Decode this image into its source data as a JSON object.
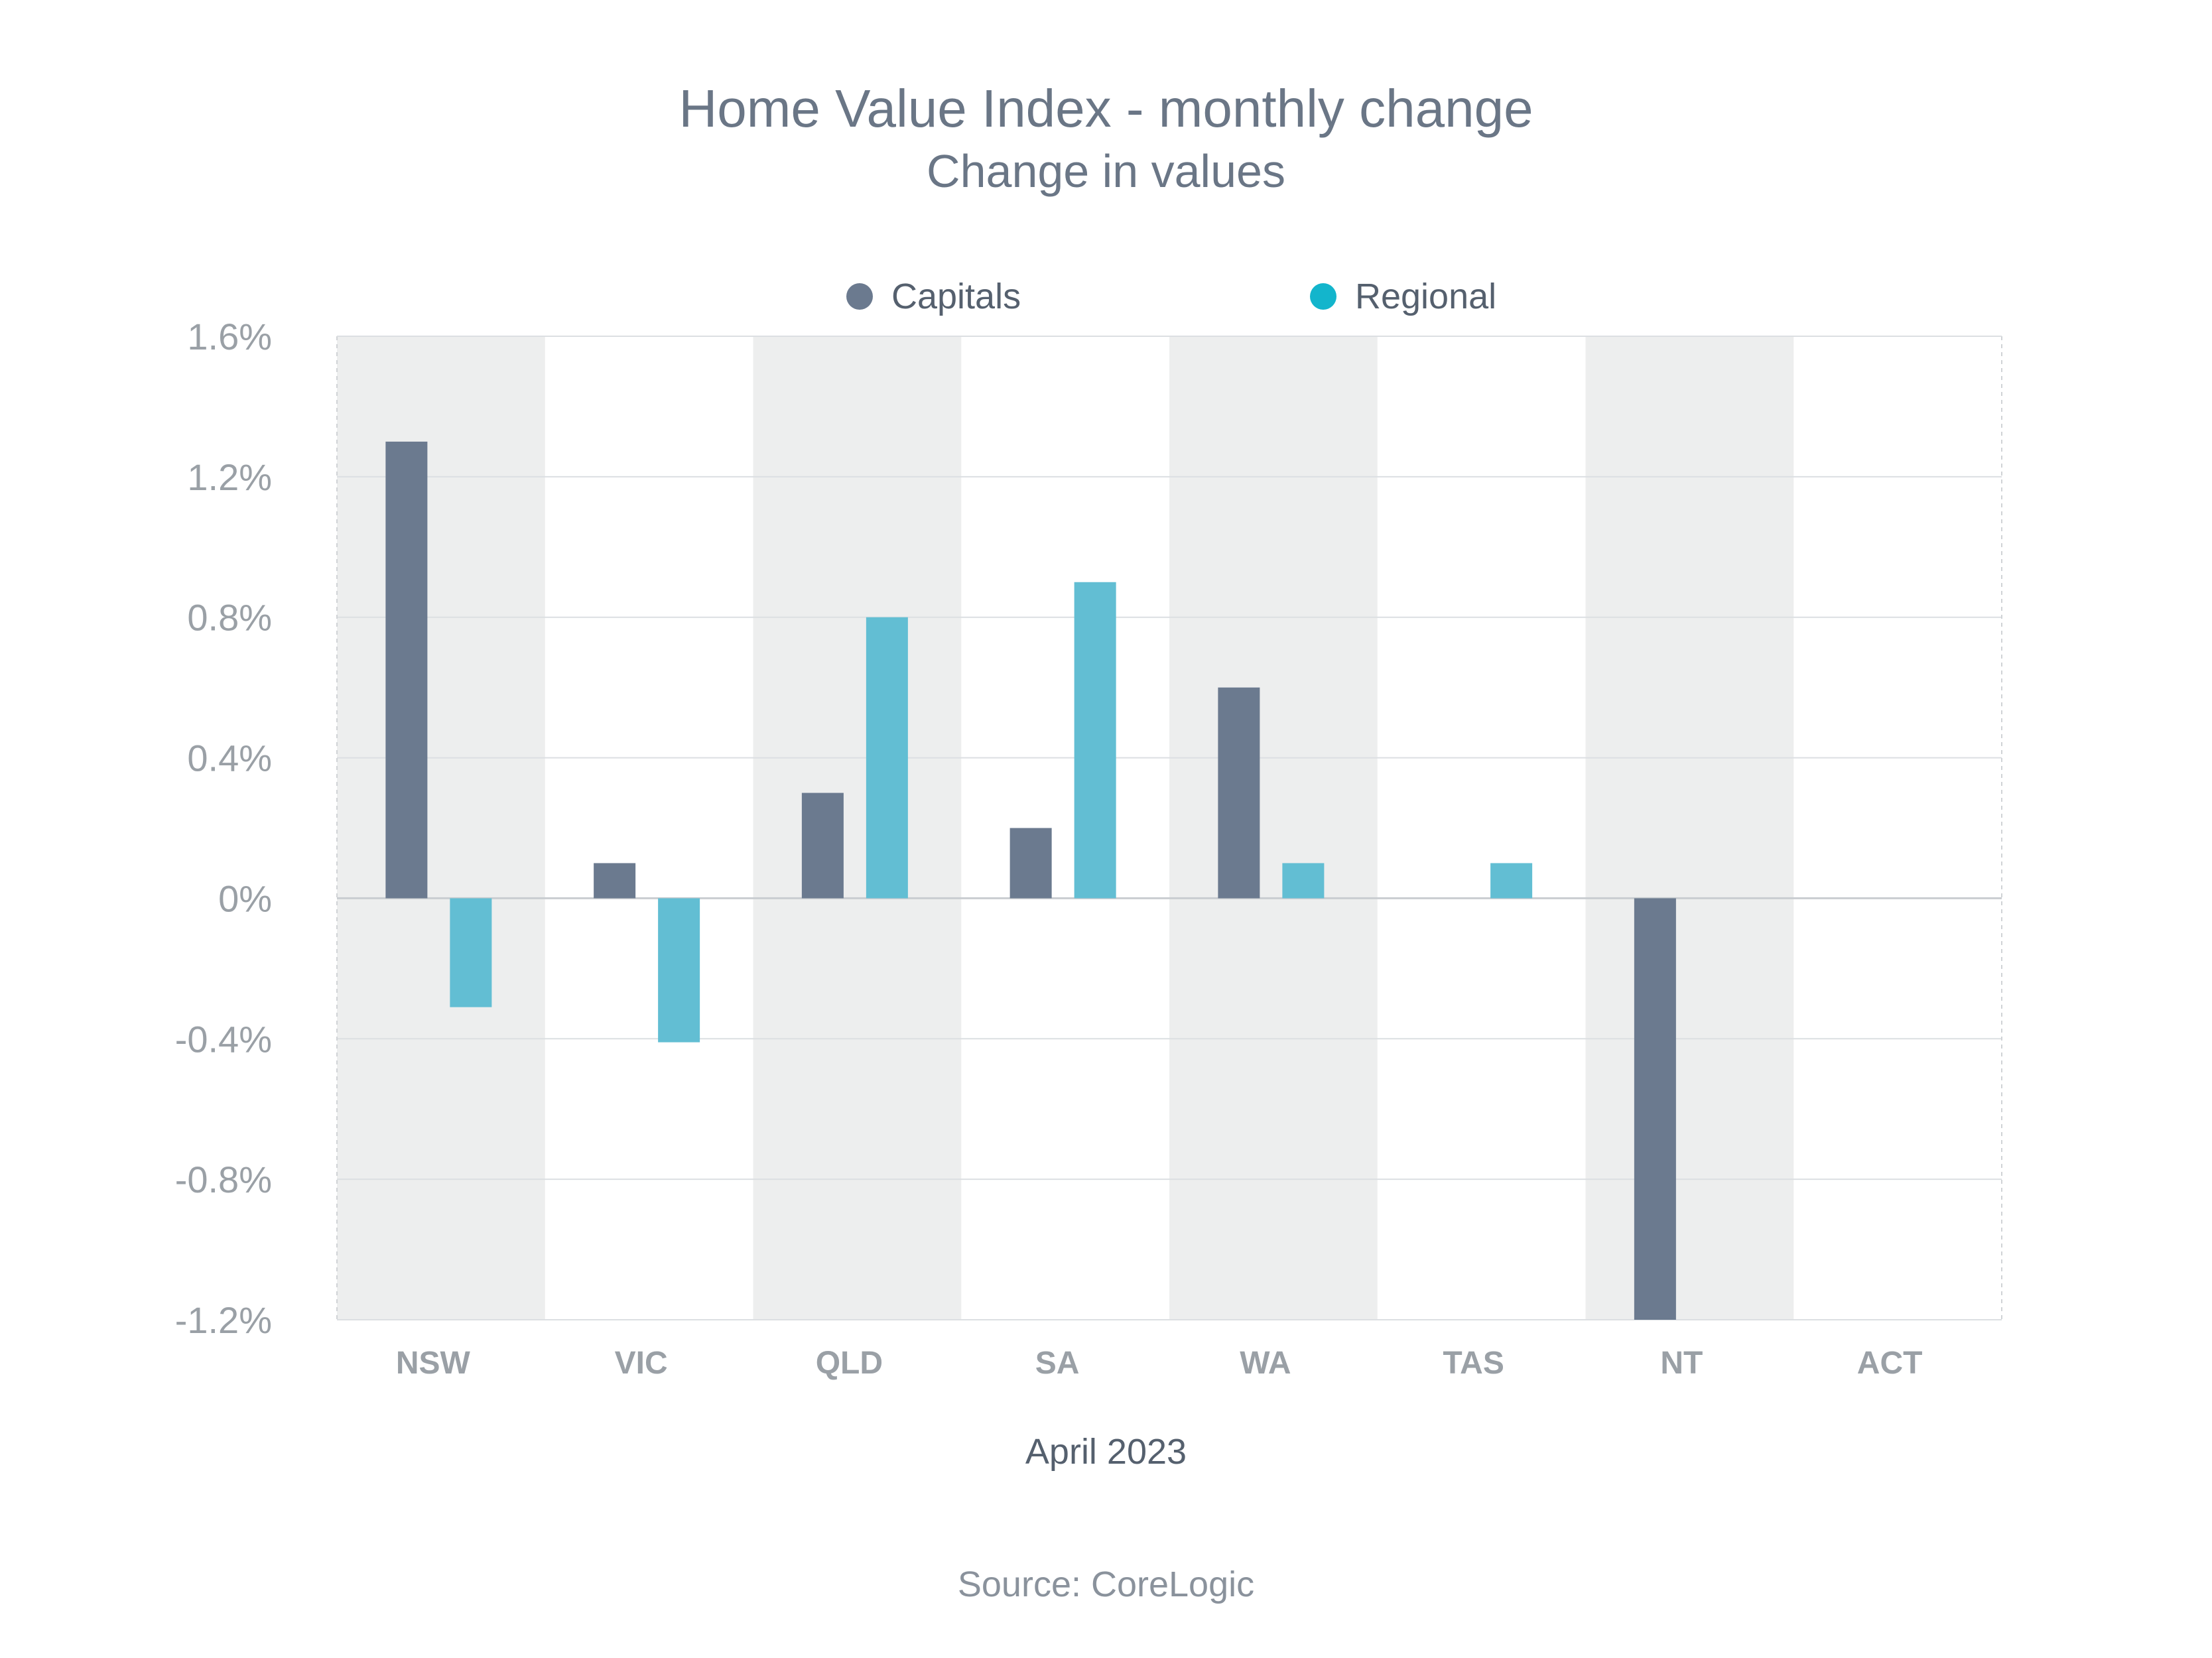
{
  "chart_data": {
    "type": "bar",
    "title": "Home Value Index - monthly change",
    "subtitle": "Change in values",
    "xlabel": "April 2023",
    "ylabel": "",
    "source": "Source: CoreLogic",
    "categories": [
      "NSW",
      "VIC",
      "QLD",
      "SA",
      "WA",
      "TAS",
      "NT",
      "ACT"
    ],
    "series": [
      {
        "name": "Capitals",
        "color": "#6b7a8f",
        "values": [
          1.3,
          0.1,
          0.3,
          0.2,
          0.6,
          null,
          -1.2,
          null
        ]
      },
      {
        "name": "Regional",
        "color": "#62bed3",
        "values": [
          -0.31,
          -0.41,
          0.8,
          0.9,
          0.1,
          0.1,
          null,
          null
        ]
      }
    ],
    "ylim": [
      -1.2,
      1.6
    ],
    "yticks": [
      1.6,
      1.2,
      0.8,
      0.4,
      0,
      -0.4,
      -0.8,
      -1.2
    ],
    "ytick_labels": [
      "1.6%",
      "1.2%",
      "0.8%",
      "0.4%",
      "0%",
      "-0.4%",
      "-0.8%",
      "-1.2%"
    ],
    "legend_marker_color_regional": "#13b5cc",
    "band_color": "#edeeee",
    "grid": true,
    "legend_position": "top-center"
  }
}
